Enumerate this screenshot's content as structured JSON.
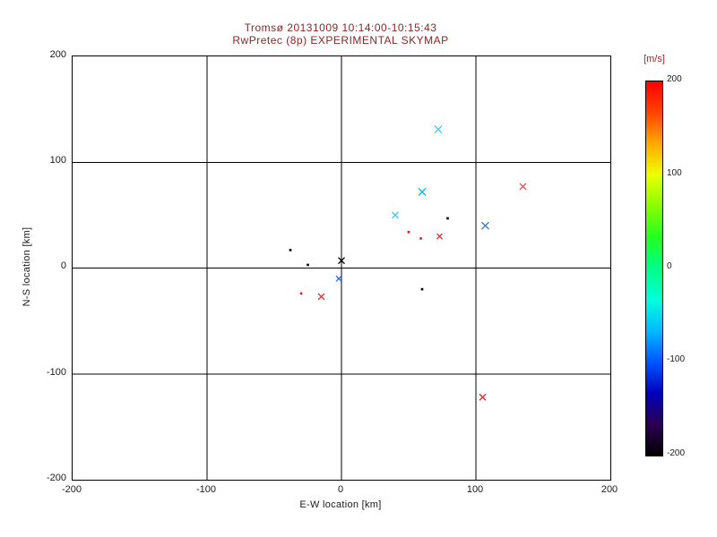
{
  "title": {
    "line1": "Tromsø 20131009 10:14:00-10:15:43",
    "line2": "RwPretec (8p) EXPERIMENTAL SKYMAP"
  },
  "axes": {
    "xlabel": "E-W location [km]",
    "ylabel": "N-S location [km]",
    "xlim": [
      -200,
      200
    ],
    "ylim": [
      -200,
      200
    ],
    "xticks": [
      -200,
      -100,
      0,
      100,
      200
    ],
    "yticks": [
      200,
      100,
      0,
      -100,
      -200
    ],
    "grid": "on"
  },
  "colorbar": {
    "label": "[m/s]",
    "ticks": [
      200,
      100,
      0,
      -100,
      -200
    ],
    "min": -200,
    "max": 200,
    "gradient": [
      "#000000",
      "#2a0050",
      "#0000bb",
      "#0055ff",
      "#00bbff",
      "#00ffdd",
      "#00ff88",
      "#22ff22",
      "#88ff00",
      "#eeff00",
      "#ffaa00",
      "#ff4400",
      "#ff0000"
    ]
  },
  "chart_data": {
    "type": "scatter",
    "title": "Tromsø 20131009 10:14:00-10:15:43 / RwPretec (8p) EXPERIMENTAL SKYMAP",
    "xlabel": "E-W location [km]",
    "ylabel": "N-S location [km]",
    "xlim": [
      -200,
      200
    ],
    "ylim": [
      -200,
      200
    ],
    "value_unit": "m/s",
    "points": [
      {
        "x": 72,
        "y": 131,
        "color": "#33ccff",
        "marker": "x",
        "size": 4
      },
      {
        "x": 60,
        "y": 72,
        "color": "#00bbee",
        "marker": "x",
        "size": 4
      },
      {
        "x": 40,
        "y": 50,
        "color": "#33ccff",
        "marker": "x",
        "size": 3.5
      },
      {
        "x": 135,
        "y": 77,
        "color": "#ee4444",
        "marker": "x",
        "size": 3.5
      },
      {
        "x": 107,
        "y": 40,
        "color": "#3377cc",
        "marker": "x",
        "size": 4
      },
      {
        "x": 79,
        "y": 47,
        "color": "#000000",
        "marker": "dot",
        "size": 1.3
      },
      {
        "x": 50,
        "y": 34,
        "color": "#cc2222",
        "marker": "dot",
        "size": 1.3
      },
      {
        "x": 59,
        "y": 28,
        "color": "#cc2222",
        "marker": "dot",
        "size": 1.3
      },
      {
        "x": 73,
        "y": 30,
        "color": "#ee2222",
        "marker": "x",
        "size": 3
      },
      {
        "x": 0,
        "y": 7,
        "color": "#000000",
        "marker": "x",
        "size": 3.5
      },
      {
        "x": -2,
        "y": -10,
        "color": "#2266ee",
        "marker": "x",
        "size": 3
      },
      {
        "x": -38,
        "y": 17,
        "color": "#000000",
        "marker": "dot",
        "size": 1.3
      },
      {
        "x": -25,
        "y": 3,
        "color": "#000000",
        "marker": "dot",
        "size": 1.3
      },
      {
        "x": -30,
        "y": -24,
        "color": "#cc2222",
        "marker": "dot",
        "size": 1.3
      },
      {
        "x": -15,
        "y": -27,
        "color": "#ee2222",
        "marker": "x",
        "size": 3.5
      },
      {
        "x": 60,
        "y": -20,
        "color": "#000000",
        "marker": "dot",
        "size": 1.3
      },
      {
        "x": 105,
        "y": -122,
        "color": "#ee2222",
        "marker": "x",
        "size": 3.5
      }
    ]
  }
}
